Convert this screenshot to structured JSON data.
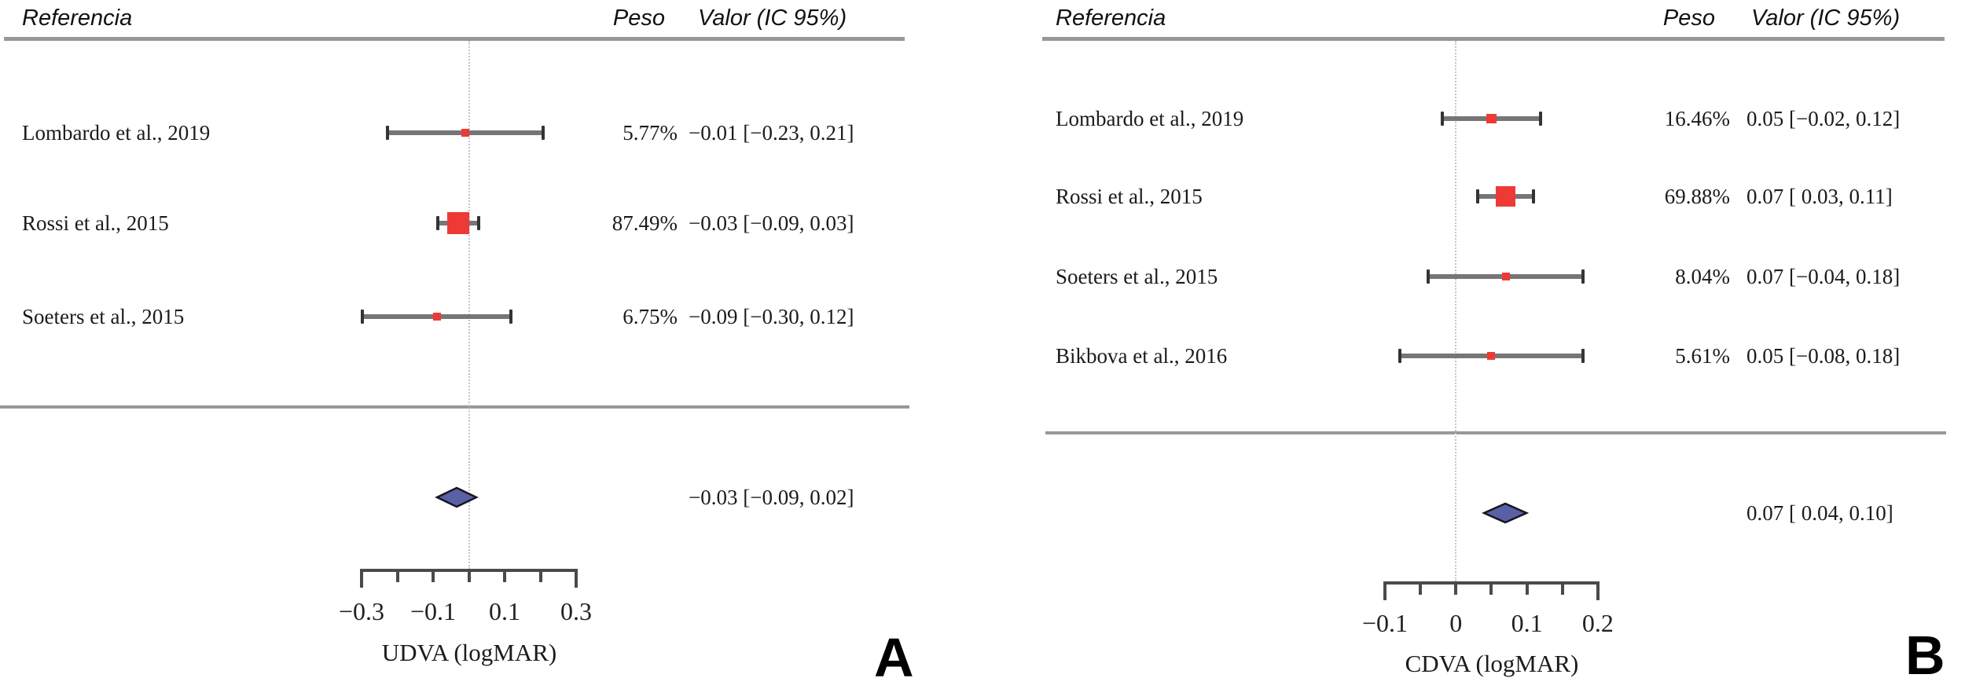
{
  "colors": {
    "study_marker": "#ee3a36",
    "ci_line": "#767676",
    "ci_cap": "#343434",
    "summary_diamond_fill": "#5a60a5",
    "summary_diamond_border": "#15151f",
    "axis_line": "#4a4a4a",
    "rule_line": "#989898"
  },
  "chart_data": [
    {
      "type": "forest",
      "panel_letter": "A",
      "xlabel": "UDVA (logMAR)",
      "columns": {
        "reference": "Referencia",
        "weight": "Peso",
        "value": "Valor (IC 95%)"
      },
      "studies": [
        {
          "label": "Lombardo et al., 2019",
          "weight_pct": 5.77,
          "weight_text": "5.77%",
          "estimate": -0.01,
          "ci": [
            -0.23,
            0.21
          ],
          "value_text": "−0.01 [−0.23, 0.21]"
        },
        {
          "label": "Rossi et al., 2015",
          "weight_pct": 87.49,
          "weight_text": "87.49%",
          "estimate": -0.03,
          "ci": [
            -0.09,
            0.03
          ],
          "value_text": "−0.03 [−0.09, 0.03]"
        },
        {
          "label": "Soeters et al., 2015",
          "weight_pct": 6.75,
          "weight_text": "6.75%",
          "estimate": -0.09,
          "ci": [
            -0.3,
            0.12
          ],
          "value_text": "−0.09 [−0.30, 0.12]"
        }
      ],
      "summary": {
        "estimate": -0.03,
        "ci": [
          -0.09,
          0.02
        ],
        "value_text": "−0.03 [−0.09, 0.02]"
      },
      "axis": {
        "range": [
          -0.3,
          0.3
        ],
        "zero_line": 0,
        "ticks": [
          -0.3,
          -0.2,
          -0.1,
          0,
          0.1,
          0.2,
          0.3
        ],
        "tick_labels": [
          "−0.3",
          "",
          "−0.1",
          "",
          "0.1",
          "",
          "0.3"
        ]
      }
    },
    {
      "type": "forest",
      "panel_letter": "B",
      "xlabel": "CDVA (logMAR)",
      "columns": {
        "reference": "Referencia",
        "weight": "Peso",
        "value": "Valor (IC 95%)"
      },
      "studies": [
        {
          "label": "Lombardo et al., 2019",
          "weight_pct": 16.46,
          "weight_text": "16.46%",
          "estimate": 0.05,
          "ci": [
            -0.02,
            0.12
          ],
          "value_text": "0.05 [−0.02, 0.12]"
        },
        {
          "label": "Rossi et al., 2015",
          "weight_pct": 69.88,
          "weight_text": "69.88%",
          "estimate": 0.07,
          "ci": [
            0.03,
            0.11
          ],
          "value_text": "0.07 [ 0.03, 0.11]"
        },
        {
          "label": "Soeters et al., 2015",
          "weight_pct": 8.04,
          "weight_text": "8.04%",
          "estimate": 0.07,
          "ci": [
            -0.04,
            0.18
          ],
          "value_text": "0.07 [−0.04, 0.18]"
        },
        {
          "label": "Bikbova et al., 2016",
          "weight_pct": 5.61,
          "weight_text": "5.61%",
          "estimate": 0.05,
          "ci": [
            -0.08,
            0.18
          ],
          "value_text": "0.05 [−0.08, 0.18]"
        }
      ],
      "summary": {
        "estimate": 0.07,
        "ci": [
          0.04,
          0.1
        ],
        "value_text": "0.07 [ 0.04, 0.10]"
      },
      "axis": {
        "range": [
          -0.1,
          0.2
        ],
        "zero_line": 0,
        "ticks": [
          -0.1,
          -0.05,
          0,
          0.05,
          0.1,
          0.15,
          0.2
        ],
        "tick_labels": [
          "−0.1",
          "",
          "0",
          "",
          "0.1",
          "",
          "0.2"
        ]
      }
    }
  ]
}
